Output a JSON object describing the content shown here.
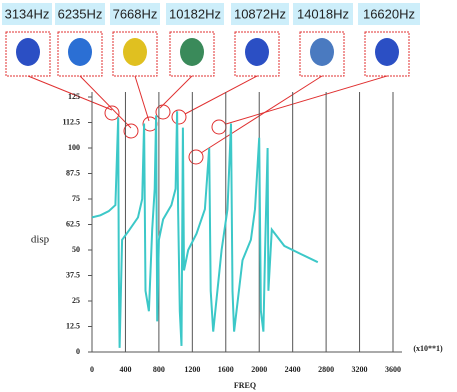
{
  "chart_data": {
    "type": "line",
    "annotations": [
      "3134Hz",
      "6235Hz",
      "7668Hz",
      "10182Hz",
      "10872Hz",
      "14018Hz",
      "16620Hz"
    ],
    "x_label": "FREQ",
    "x_unit": "(x10**1)",
    "y_label": "disp",
    "x": [
      0,
      100,
      200,
      280,
      313,
      320,
      330,
      360,
      450,
      550,
      600,
      623,
      640,
      680,
      720,
      750,
      767,
      780,
      800,
      850,
      950,
      1000,
      1018,
      1030,
      1050,
      1070,
      1087,
      1100,
      1150,
      1250,
      1350,
      1402,
      1420,
      1450,
      1550,
      1620,
      1662,
      1680,
      1700,
      1800,
      1900,
      1950,
      2000,
      2020,
      2050,
      2070,
      2100,
      2110,
      2150,
      2300,
      2500,
      2700
    ],
    "series": [
      {
        "name": "disp",
        "color": "#3cc8c8",
        "values": [
          66,
          67,
          69,
          72,
          115,
          40,
          2,
          55,
          60,
          66,
          75,
          112,
          30,
          20,
          60,
          80,
          116,
          15,
          55,
          65,
          72,
          80,
          118,
          70,
          20,
          3,
          110,
          40,
          50,
          58,
          70,
          100,
          30,
          10,
          50,
          70,
          112,
          30,
          10,
          45,
          55,
          70,
          105,
          20,
          10,
          50,
          100,
          30,
          60,
          52,
          48,
          44
        ]
      }
    ],
    "xlim": [
      0,
      3600
    ],
    "xticks": [
      0,
      400,
      800,
      1200,
      1600,
      2000,
      2400,
      2800,
      3200,
      3600
    ],
    "ylim": [
      0,
      125
    ],
    "yticks": [
      0,
      12.5,
      25,
      37.5,
      50,
      62.5,
      75,
      87.5,
      100,
      112.5,
      125
    ],
    "grid": "x"
  }
}
